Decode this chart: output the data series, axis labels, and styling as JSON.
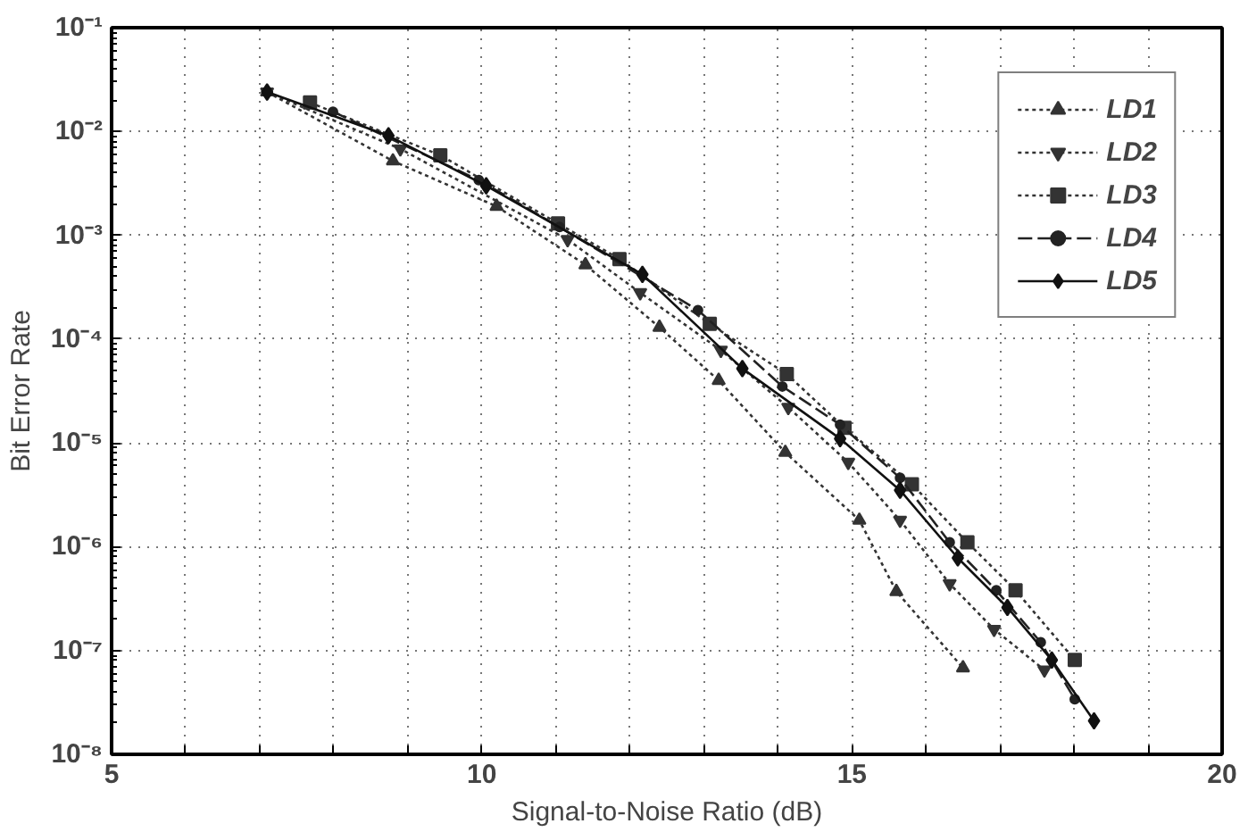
{
  "chart_data": {
    "type": "line",
    "xlabel": "Signal-to-Noise Ratio (dB)",
    "ylabel": "Bit Error Rate",
    "log": "y",
    "xlim": [
      5,
      20
    ],
    "xticks": [
      5,
      {
        "value": 6,
        "label": null
      },
      {
        "value": 7,
        "label": null
      },
      {
        "value": 8,
        "label": null
      },
      {
        "value": 9,
        "label": null
      },
      10,
      {
        "value": 11,
        "label": null
      },
      {
        "value": 12,
        "label": null
      },
      {
        "value": 13,
        "label": null
      },
      {
        "value": 14,
        "label": null
      },
      15,
      {
        "value": 16,
        "label": null
      },
      {
        "value": 17,
        "label": null
      },
      {
        "value": 18,
        "label": null
      },
      {
        "value": 19,
        "label": null
      },
      20
    ],
    "ylim": [
      1e-08,
      0.1
    ],
    "yticks": [
      {
        "value": 1e-08,
        "label": "10⁻⁸"
      },
      {
        "value": 1e-07,
        "label": "10⁻⁷"
      },
      {
        "value": 1e-06,
        "label": "10⁻⁶"
      },
      {
        "value": 1e-05,
        "label": "10⁻⁵"
      },
      {
        "value": 0.0001,
        "label": "10⁻⁴"
      },
      {
        "value": 0.001,
        "label": "10⁻³"
      },
      {
        "value": 0.01,
        "label": "10⁻²"
      },
      {
        "value": 0.1,
        "label": "10⁻¹"
      }
    ],
    "grid": true,
    "legend": "top right",
    "series": [
      {
        "name": "LD1",
        "color": "#333333",
        "marker": "triangle",
        "line_style": "dotted",
        "x": [
          7.1,
          8.8,
          10.2,
          11.4,
          12.4,
          13.2,
          14.1,
          15.1,
          15.6,
          16.5
        ],
        "values": [
          0.024,
          0.0052,
          0.0019,
          0.00052,
          0.00013,
          4e-05,
          8.1e-06,
          1.8e-06,
          3.7e-07,
          6.8e-08
        ]
      },
      {
        "name": "LD2",
        "color": "#333333",
        "marker": "triangle_down",
        "line_style": "dotted",
        "x": [
          7.1,
          8.9,
          11.16,
          12.14,
          13.23,
          14.14,
          14.95,
          15.65,
          16.32,
          16.92,
          17.6
        ],
        "values": [
          0.024,
          0.0068,
          0.00091,
          0.00028,
          7.8e-05,
          2.2e-05,
          6.5e-06,
          1.8e-06,
          4.4e-07,
          1.6e-07,
          6.5e-08
        ]
      },
      {
        "name": "LD3",
        "color": "#333333",
        "marker": "square",
        "line_style": "dotted",
        "x": [
          7.68,
          9.44,
          11.03,
          11.86,
          13.08,
          14.12,
          14.9,
          15.81,
          16.56,
          17.21,
          18.01
        ],
        "values": [
          0.019,
          0.0059,
          0.0013,
          0.00059,
          0.00014,
          4.6e-05,
          1.4e-05,
          4e-06,
          1.1e-06,
          3.8e-07,
          8.1e-08
        ]
      },
      {
        "name": "LD4",
        "color": "#222222",
        "marker": "circle",
        "line_style": "dashed",
        "x": [
          7.99,
          9.96,
          11.05,
          12.92,
          14.06,
          14.84,
          15.65,
          16.32,
          16.95,
          17.55,
          18.01
        ],
        "values": [
          0.0155,
          0.0034,
          0.0012,
          0.00019,
          3.5e-05,
          1.5e-05,
          4.6e-06,
          1.1e-06,
          3.8e-07,
          1.2e-07,
          3.4e-08
        ]
      },
      {
        "name": "LD5",
        "color": "#111111",
        "marker": "diamond",
        "line_style": "solid",
        "x": [
          7.1,
          8.74,
          10.06,
          12.17,
          13.52,
          14.84,
          15.65,
          16.43,
          17.1,
          17.7,
          18.27
        ],
        "values": [
          0.024,
          0.0091,
          0.003,
          0.00042,
          5.2e-05,
          1.1e-05,
          3.5e-06,
          7.8e-07,
          2.6e-07,
          8.1e-08,
          2.1e-08
        ]
      }
    ]
  }
}
